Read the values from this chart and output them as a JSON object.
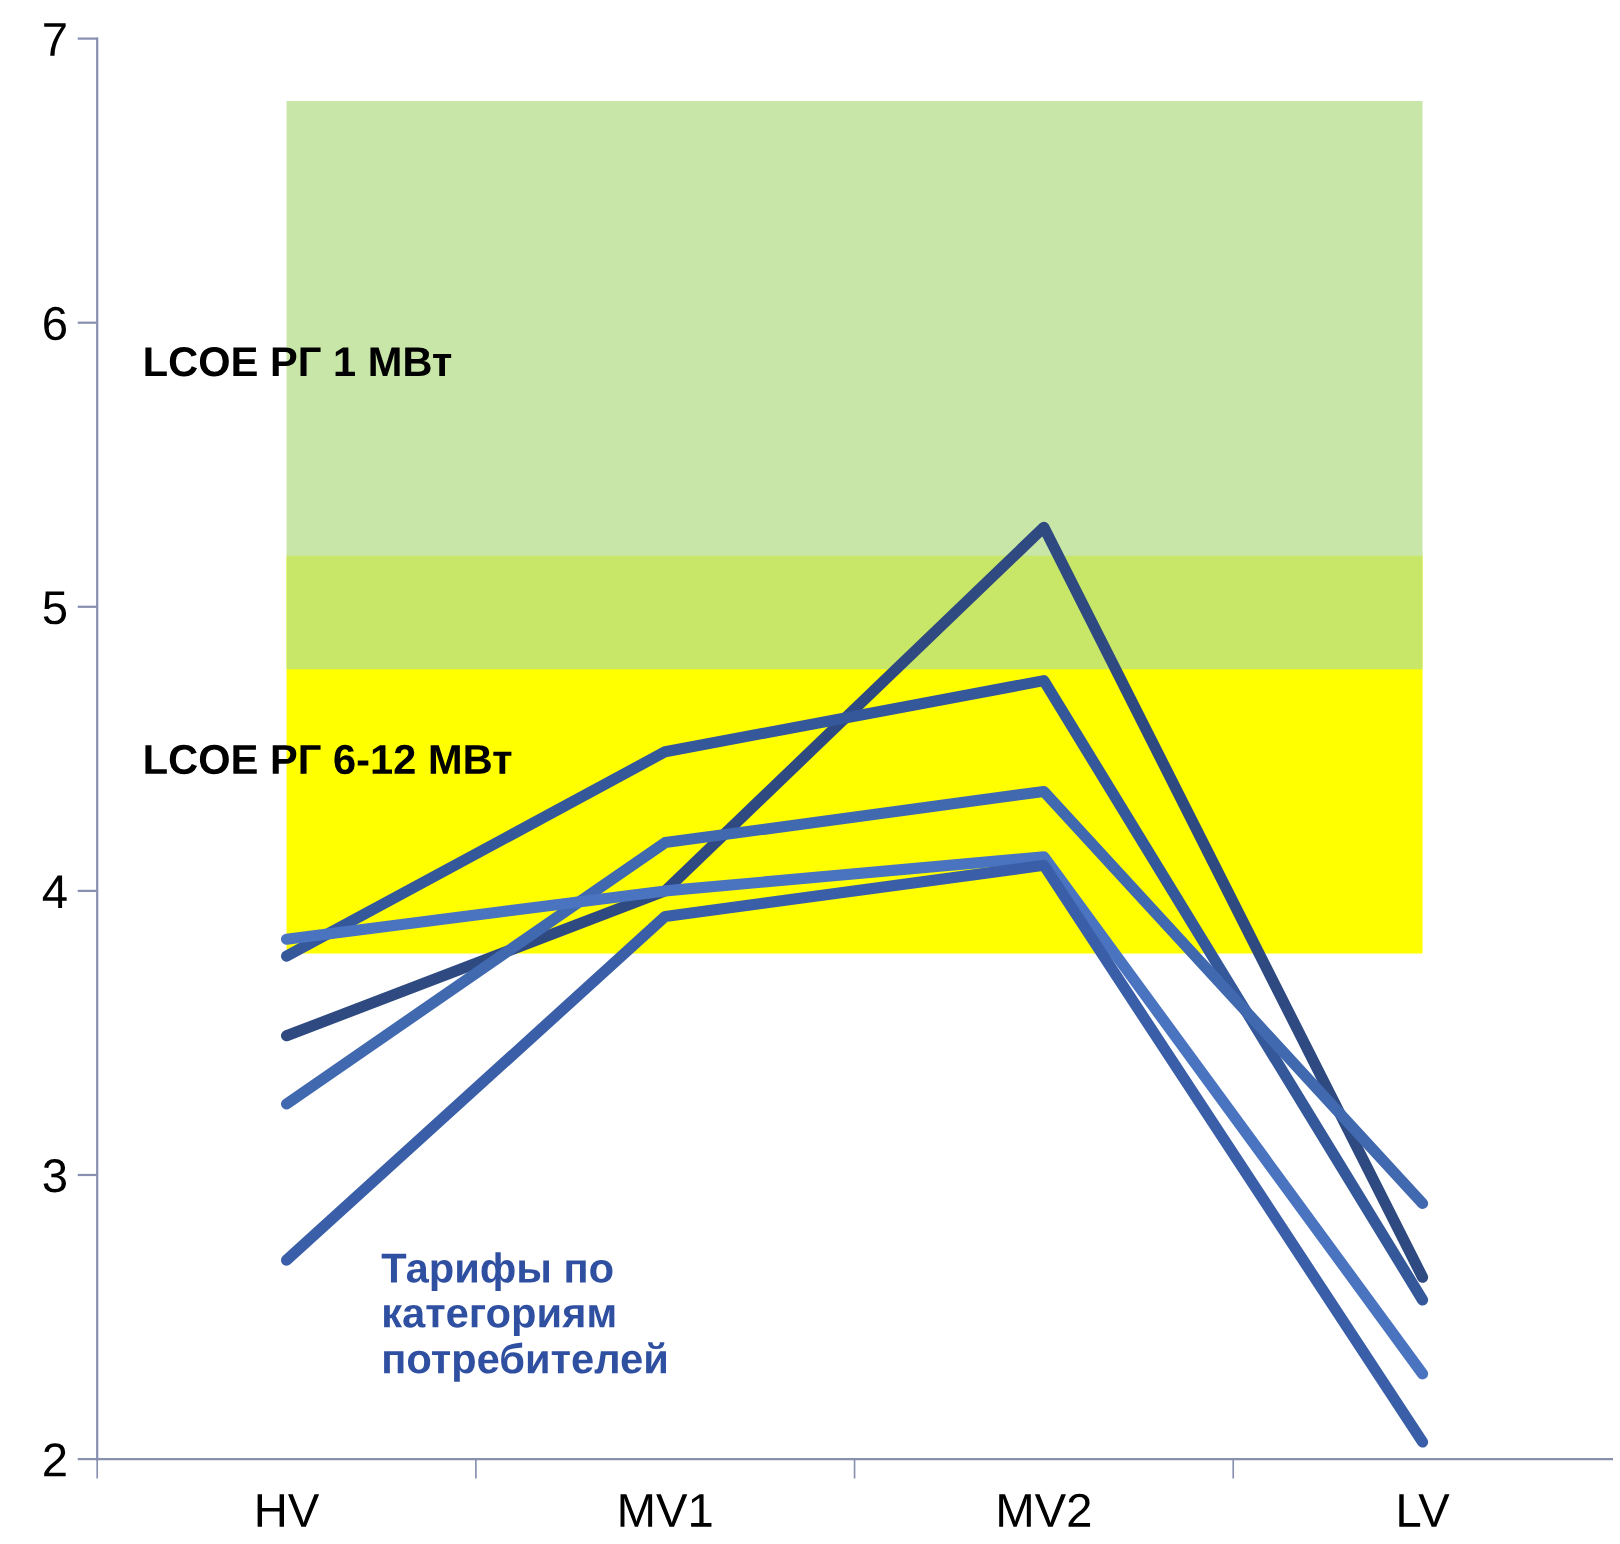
{
  "chart_data": {
    "type": "line",
    "categories": [
      "HV",
      "MV1",
      "MV2",
      "LV"
    ],
    "series": [
      {
        "color": "#2e4a80",
        "values": [
          3.49,
          4.0,
          5.28,
          2.64
        ]
      },
      {
        "color": "#34589a",
        "values": [
          3.77,
          4.49,
          4.74,
          2.56
        ]
      },
      {
        "color": "#4169b0",
        "values": [
          3.25,
          4.17,
          4.35,
          2.9
        ]
      },
      {
        "color": "#4a74c0",
        "values": [
          3.83,
          4.0,
          4.12,
          2.3
        ]
      },
      {
        "color": "#3a5fa8",
        "values": [
          2.7,
          3.91,
          4.09,
          2.06
        ]
      }
    ],
    "ylim": [
      2,
      7
    ],
    "yticks": [
      2,
      3,
      4,
      5,
      6,
      7
    ],
    "bands": [
      {
        "axis": "y",
        "from": 3.78,
        "to": 5.18,
        "label": "LCOE РГ 6-12 МВт",
        "color": "#ffff00"
      },
      {
        "axis": "y",
        "from": 4.78,
        "to": 6.78,
        "label": "LCOE РГ 1 МВт",
        "color": "#c8e6a8"
      }
    ],
    "annotations": [
      "Тарифы по\nкатегориям\nпотребителей"
    ],
    "marker": "none",
    "line_style": "solid"
  }
}
